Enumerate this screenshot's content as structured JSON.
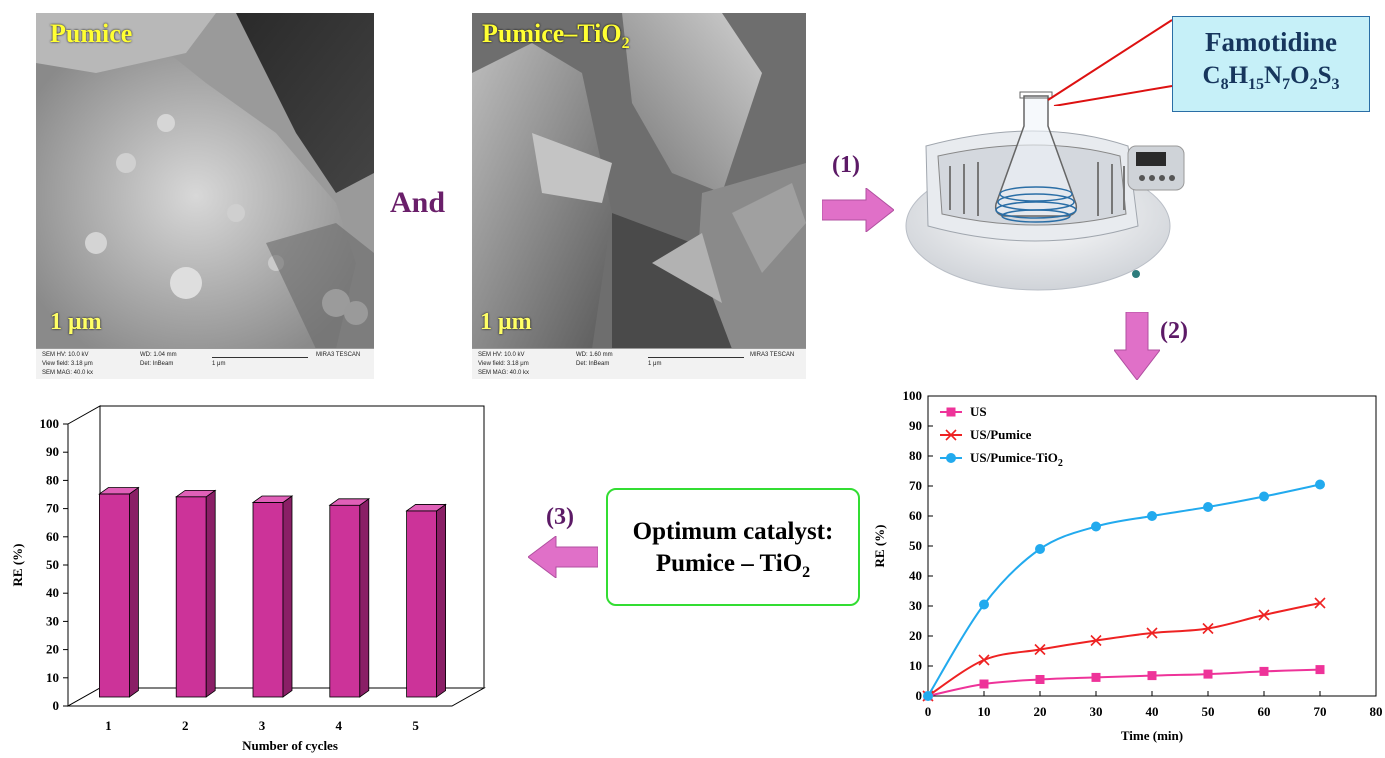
{
  "sem_left": {
    "label": "Pumice",
    "scale": "1 μm",
    "info": {
      "hv": "SEM HV: 10.0 kV",
      "wd": "WD: 1.04 mm",
      "view": "View field: 3.18 μm",
      "det": "Det: InBeam",
      "mag": "SEM MAG: 40.0 kx",
      "bar": "1 μm",
      "brand": "MIRA3 TESCAN"
    }
  },
  "sem_right": {
    "label_main": "Pumice–TiO",
    "label_sub": "2",
    "scale": "1 μm",
    "info": {
      "hv": "SEM HV: 10.0 kV",
      "wd": "WD: 1.60 mm",
      "view": "View field: 3.18 μm",
      "det": "Det: InBeam",
      "mag": "SEM MAG: 40.0 kx",
      "bar": "1 μm",
      "brand": "MIRA3 TESCAN"
    }
  },
  "and_text": "And",
  "steps": {
    "s1": "(1)",
    "s2": "(2)",
    "s3": "(3)"
  },
  "famotidine": {
    "title": "Famotidine",
    "formula": [
      {
        "t": "C"
      },
      {
        "s": "8"
      },
      {
        "t": "H"
      },
      {
        "s": "15"
      },
      {
        "t": "N"
      },
      {
        "s": "7"
      },
      {
        "t": "O"
      },
      {
        "s": "2"
      },
      {
        "t": "S"
      },
      {
        "s": "3"
      }
    ]
  },
  "optimum": {
    "line1": "Optimum catalyst:",
    "line2_main": "Pumice – TiO",
    "line2_sub": "2"
  },
  "colors": {
    "bar": "#cc3399",
    "us": "#ee3399",
    "us_pumice": "#ee2222",
    "us_tio2": "#22aaee",
    "arrow": "#e070c8"
  },
  "chart_data": [
    {
      "type": "bar",
      "categories": [
        "1",
        "2",
        "3",
        "4",
        "5"
      ],
      "values": [
        72,
        71,
        69,
        68,
        66
      ],
      "xlabel": "Number of cycles",
      "ylabel": "RE (%)",
      "ylim": [
        0,
        100
      ],
      "yticks": [
        "0",
        "10",
        "20",
        "30",
        "40",
        "50",
        "60",
        "70",
        "80",
        "90",
        "100"
      ],
      "grid": false
    },
    {
      "type": "line",
      "x": [
        0,
        10,
        20,
        30,
        40,
        50,
        60,
        70
      ],
      "xticks": [
        "0",
        "10",
        "20",
        "30",
        "40",
        "50",
        "60",
        "70",
        "80"
      ],
      "yticks": [
        "0",
        "10",
        "20",
        "30",
        "40",
        "50",
        "60",
        "70",
        "80",
        "90",
        "100"
      ],
      "xlim": [
        0,
        80
      ],
      "ylim": [
        0,
        100
      ],
      "xlabel": "Time (min)",
      "ylabel": "RE (%)",
      "legend": "top-left",
      "series": [
        {
          "name": "US",
          "marker": "square",
          "values": [
            0,
            4,
            5.5,
            6.2,
            6.8,
            7.3,
            8.2,
            8.8
          ]
        },
        {
          "name": "US/Pumice",
          "marker": "x",
          "values": [
            0,
            12,
            15.5,
            18.5,
            21,
            22.5,
            27,
            31
          ]
        },
        {
          "name": "US/Pumice-TiO",
          "name_sub": "2",
          "marker": "circle",
          "values": [
            0,
            30.5,
            49,
            56.5,
            60,
            63,
            66.5,
            70.5
          ]
        }
      ]
    }
  ]
}
